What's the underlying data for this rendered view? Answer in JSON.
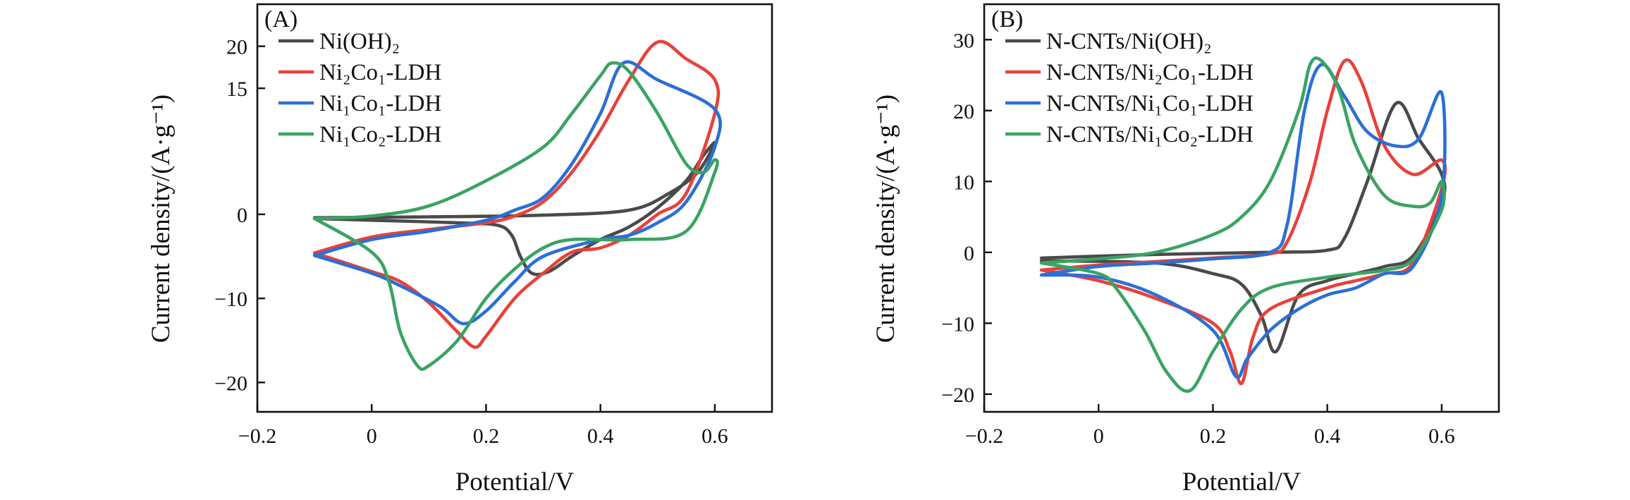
{
  "colors": {
    "gray": "#4a4a4a",
    "red": "#e8413a",
    "blue": "#2b6fd6",
    "green": "#3aa363"
  },
  "chart_data": [
    {
      "type": "line",
      "panel_label": "(A)",
      "xlabel": "Potential/V",
      "ylabel": "Current density/(A·g⁻¹)",
      "xlim": [
        -0.2,
        0.7
      ],
      "ylim": [
        -23.5,
        25
      ],
      "xticks": [
        -0.2,
        0,
        0.2,
        0.4,
        0.6
      ],
      "xtick_labels": [
        "−0.2",
        "0",
        "0.2",
        "0.4",
        "0.6"
      ],
      "yticks": [
        -20,
        -10,
        0,
        15,
        20
      ],
      "ytick_labels": [
        "−20",
        "−10",
        "0",
        "15",
        "20"
      ],
      "legend_position": "top-left",
      "series": [
        {
          "name": "Ni(OH)₂",
          "color": "gray",
          "points": [
            [
              -0.1,
              -0.4
            ],
            [
              0.1,
              -0.3
            ],
            [
              0.3,
              -0.1
            ],
            [
              0.45,
              0.5
            ],
            [
              0.52,
              2.5
            ],
            [
              0.57,
              5
            ],
            [
              0.6,
              8.5
            ],
            [
              0.58,
              7
            ],
            [
              0.55,
              4
            ],
            [
              0.5,
              0.8
            ],
            [
              0.45,
              -1.5
            ],
            [
              0.4,
              -3
            ],
            [
              0.35,
              -5
            ],
            [
              0.31,
              -6.8
            ],
            [
              0.28,
              -7
            ],
            [
              0.26,
              -5
            ],
            [
              0.245,
              -2.5
            ],
            [
              0.22,
              -1.3
            ],
            [
              0.15,
              -1
            ],
            [
              0,
              -0.7
            ],
            [
              -0.1,
              -0.5
            ]
          ]
        },
        {
          "name": "Ni₂Co₁-LDH",
          "color": "red",
          "points": [
            [
              -0.1,
              -4.6
            ],
            [
              0,
              -2.7
            ],
            [
              0.1,
              -1.8
            ],
            [
              0.2,
              -1
            ],
            [
              0.25,
              -0.2
            ],
            [
              0.3,
              1.5
            ],
            [
              0.35,
              5
            ],
            [
              0.4,
              10
            ],
            [
              0.45,
              16
            ],
            [
              0.5,
              20.5
            ],
            [
              0.55,
              18.5
            ],
            [
              0.6,
              16
            ],
            [
              0.6,
              12
            ],
            [
              0.55,
              2.5
            ],
            [
              0.5,
              0
            ],
            [
              0.45,
              -2.5
            ],
            [
              0.4,
              -4
            ],
            [
              0.35,
              -4.5
            ],
            [
              0.3,
              -7
            ],
            [
              0.25,
              -10
            ],
            [
              0.2,
              -14.5
            ],
            [
              0.18,
              -15.8
            ],
            [
              0.15,
              -14
            ],
            [
              0.1,
              -10.5
            ],
            [
              0.05,
              -8
            ],
            [
              0,
              -6.8
            ],
            [
              -0.1,
              -4.6
            ]
          ]
        },
        {
          "name": "Ni₁Co₁-LDH",
          "color": "blue",
          "points": [
            [
              -0.1,
              -4.9
            ],
            [
              0,
              -3
            ],
            [
              0.1,
              -2
            ],
            [
              0.2,
              -0.7
            ],
            [
              0.25,
              0.5
            ],
            [
              0.3,
              2
            ],
            [
              0.35,
              6
            ],
            [
              0.4,
              12
            ],
            [
              0.44,
              18
            ],
            [
              0.5,
              16
            ],
            [
              0.6,
              12.5
            ],
            [
              0.6,
              8
            ],
            [
              0.55,
              1.5
            ],
            [
              0.5,
              -1
            ],
            [
              0.45,
              -2.5
            ],
            [
              0.4,
              -3
            ],
            [
              0.3,
              -5
            ],
            [
              0.25,
              -8
            ],
            [
              0.2,
              -11.5
            ],
            [
              0.16,
              -13
            ],
            [
              0.12,
              -11
            ],
            [
              0.05,
              -8.5
            ],
            [
              0,
              -7
            ],
            [
              -0.1,
              -4.9
            ]
          ]
        },
        {
          "name": "Ni₁Co₂-LDH",
          "color": "green",
          "points": [
            [
              -0.1,
              -0.5
            ],
            [
              0,
              -0.2
            ],
            [
              0.1,
              1
            ],
            [
              0.2,
              4
            ],
            [
              0.3,
              8
            ],
            [
              0.35,
              12
            ],
            [
              0.4,
              16.5
            ],
            [
              0.42,
              18
            ],
            [
              0.45,
              17
            ],
            [
              0.5,
              12
            ],
            [
              0.55,
              6
            ],
            [
              0.58,
              5
            ],
            [
              0.6,
              6.5
            ],
            [
              0.6,
              5
            ],
            [
              0.55,
              -2
            ],
            [
              0.45,
              -3
            ],
            [
              0.35,
              -3
            ],
            [
              0.3,
              -4
            ],
            [
              0.25,
              -6.5
            ],
            [
              0.2,
              -10
            ],
            [
              0.15,
              -15
            ],
            [
              0.1,
              -18
            ],
            [
              0.08,
              -18
            ],
            [
              0.05,
              -14
            ],
            [
              0.03,
              -8
            ],
            [
              0,
              -4.5
            ],
            [
              -0.1,
              -0.5
            ]
          ]
        }
      ]
    },
    {
      "type": "line",
      "panel_label": "(B)",
      "xlabel": "Potential/V",
      "ylabel": "Current density/(A·g⁻¹)",
      "xlim": [
        -0.2,
        0.7
      ],
      "ylim": [
        -22.5,
        35
      ],
      "xticks": [
        -0.2,
        0,
        0.2,
        0.4,
        0.6
      ],
      "xtick_labels": [
        "−0.2",
        "0",
        "0.2",
        "0.4",
        "0.6"
      ],
      "yticks": [
        -20,
        -10,
        0,
        10,
        20,
        30
      ],
      "ytick_labels": [
        "−20",
        "−10",
        "0",
        "10",
        "20",
        "30"
      ],
      "legend_position": "top-left",
      "series": [
        {
          "name": "N-CNTs/Ni(OH)₂",
          "color": "gray",
          "points": [
            [
              -0.1,
              -0.8
            ],
            [
              0.1,
              -0.3
            ],
            [
              0.3,
              0
            ],
            [
              0.4,
              0.3
            ],
            [
              0.43,
              2
            ],
            [
              0.47,
              10
            ],
            [
              0.52,
              21
            ],
            [
              0.56,
              16
            ],
            [
              0.6,
              11
            ],
            [
              0.6,
              7
            ],
            [
              0.55,
              -0.5
            ],
            [
              0.5,
              -2
            ],
            [
              0.45,
              -3
            ],
            [
              0.4,
              -4
            ],
            [
              0.35,
              -6
            ],
            [
              0.31,
              -14
            ],
            [
              0.285,
              -9
            ],
            [
              0.25,
              -4.5
            ],
            [
              0.2,
              -3
            ],
            [
              0.1,
              -1.5
            ],
            [
              -0.1,
              -1.2
            ]
          ]
        },
        {
          "name": "N-CNTs/Ni₂Co₁-LDH",
          "color": "red",
          "points": [
            [
              -0.1,
              -2.5
            ],
            [
              0,
              -1.8
            ],
            [
              0.1,
              -1.3
            ],
            [
              0.2,
              -0.8
            ],
            [
              0.3,
              -0.2
            ],
            [
              0.33,
              1.5
            ],
            [
              0.37,
              10
            ],
            [
              0.4,
              20
            ],
            [
              0.43,
              27
            ],
            [
              0.46,
              24
            ],
            [
              0.5,
              15
            ],
            [
              0.55,
              11
            ],
            [
              0.6,
              13
            ],
            [
              0.6,
              9
            ],
            [
              0.55,
              -1.5
            ],
            [
              0.5,
              -3
            ],
            [
              0.45,
              -4
            ],
            [
              0.4,
              -5
            ],
            [
              0.3,
              -8
            ],
            [
              0.27,
              -12
            ],
            [
              0.25,
              -18.5
            ],
            [
              0.23,
              -14
            ],
            [
              0.2,
              -10
            ],
            [
              0.1,
              -6.5
            ],
            [
              0,
              -4
            ],
            [
              -0.1,
              -2.5
            ]
          ]
        },
        {
          "name": "N-CNTs/Ni₁Co₁-LDH",
          "color": "blue",
          "points": [
            [
              -0.1,
              -3.2
            ],
            [
              0,
              -2
            ],
            [
              0.1,
              -1.5
            ],
            [
              0.2,
              -0.9
            ],
            [
              0.3,
              0
            ],
            [
              0.33,
              4
            ],
            [
              0.36,
              20
            ],
            [
              0.39,
              26.5
            ],
            [
              0.43,
              22
            ],
            [
              0.47,
              17
            ],
            [
              0.52,
              15
            ],
            [
              0.56,
              16
            ],
            [
              0.6,
              22.5
            ],
            [
              0.6,
              8
            ],
            [
              0.55,
              -2
            ],
            [
              0.5,
              -3
            ],
            [
              0.45,
              -5
            ],
            [
              0.4,
              -6
            ],
            [
              0.35,
              -8
            ],
            [
              0.3,
              -11
            ],
            [
              0.26,
              -15
            ],
            [
              0.24,
              -17.5
            ],
            [
              0.2,
              -11
            ],
            [
              0.1,
              -6
            ],
            [
              0,
              -3.5
            ],
            [
              -0.1,
              -3.2
            ]
          ]
        },
        {
          "name": "N-CNTs/Ni₁Co₂-LDH",
          "color": "green",
          "points": [
            [
              -0.1,
              -1.5
            ],
            [
              0,
              -0.9
            ],
            [
              0.1,
              0
            ],
            [
              0.2,
              2.5
            ],
            [
              0.25,
              5
            ],
            [
              0.3,
              10
            ],
            [
              0.35,
              20
            ],
            [
              0.37,
              26.5
            ],
            [
              0.39,
              27
            ],
            [
              0.42,
              23
            ],
            [
              0.45,
              15
            ],
            [
              0.5,
              8
            ],
            [
              0.55,
              6.5
            ],
            [
              0.58,
              7
            ],
            [
              0.6,
              10
            ],
            [
              0.6,
              6
            ],
            [
              0.55,
              -1
            ],
            [
              0.5,
              -2.5
            ],
            [
              0.45,
              -3
            ],
            [
              0.4,
              -3.5
            ],
            [
              0.3,
              -5
            ],
            [
              0.25,
              -8
            ],
            [
              0.2,
              -14
            ],
            [
              0.16,
              -19.5
            ],
            [
              0.12,
              -17
            ],
            [
              0.08,
              -11
            ],
            [
              0.03,
              -5
            ],
            [
              0,
              -3
            ],
            [
              -0.1,
              -1.5
            ]
          ]
        }
      ]
    }
  ]
}
